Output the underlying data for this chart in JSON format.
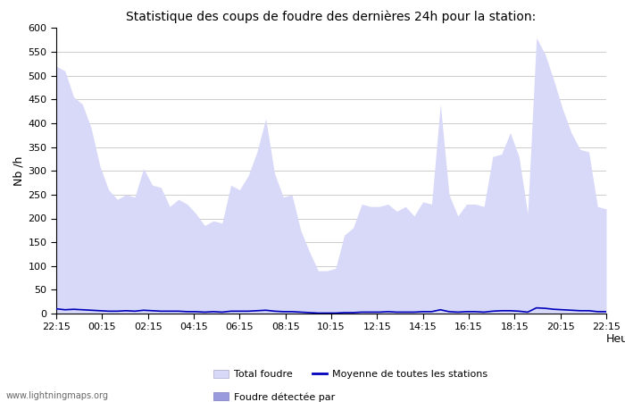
{
  "title": "Statistique des coups de foudre des dernières 24h pour la station:",
  "xlabel": "Heure",
  "ylabel": "Nb /h",
  "ylim": [
    0,
    600
  ],
  "yticks": [
    0,
    50,
    100,
    150,
    200,
    250,
    300,
    350,
    400,
    450,
    500,
    550,
    600
  ],
  "x_labels": [
    "22:15",
    "00:15",
    "02:15",
    "04:15",
    "06:15",
    "08:15",
    "10:15",
    "12:15",
    "14:15",
    "16:15",
    "18:15",
    "20:15",
    "22:15"
  ],
  "fill_color_light": "#d8d8f8",
  "fill_color_dark": "#9999dd",
  "line_color": "#0000bb",
  "background_color": "#ffffff",
  "grid_color": "#cccccc",
  "watermark": "www.lightningmaps.org",
  "legend_total": "Total foudre",
  "legend_detected": "Foudre détectée par",
  "legend_moyenne": "Moyenne de toutes les stations",
  "total_foudre": [
    520,
    510,
    455,
    440,
    390,
    310,
    260,
    240,
    250,
    245,
    305,
    270,
    265,
    225,
    240,
    230,
    210,
    185,
    195,
    190,
    270,
    260,
    290,
    340,
    410,
    295,
    245,
    250,
    175,
    130,
    90,
    90,
    95,
    165,
    180,
    230,
    225,
    225,
    230,
    215,
    225,
    205,
    235,
    230,
    440,
    250,
    205,
    230,
    230,
    225,
    330,
    335,
    380,
    330,
    210,
    580,
    545,
    490,
    430,
    380,
    345,
    340,
    225,
    220
  ],
  "moyenne": [
    10,
    8,
    9,
    8,
    7,
    6,
    5,
    5,
    6,
    5,
    7,
    6,
    5,
    5,
    5,
    4,
    4,
    3,
    4,
    3,
    5,
    5,
    5,
    6,
    7,
    5,
    4,
    4,
    3,
    2,
    1,
    1,
    1,
    2,
    2,
    3,
    3,
    3,
    4,
    3,
    3,
    3,
    4,
    4,
    8,
    4,
    3,
    4,
    4,
    3,
    5,
    6,
    6,
    5,
    3,
    12,
    11,
    9,
    8,
    7,
    6,
    6,
    4,
    4
  ],
  "n_points": 64
}
